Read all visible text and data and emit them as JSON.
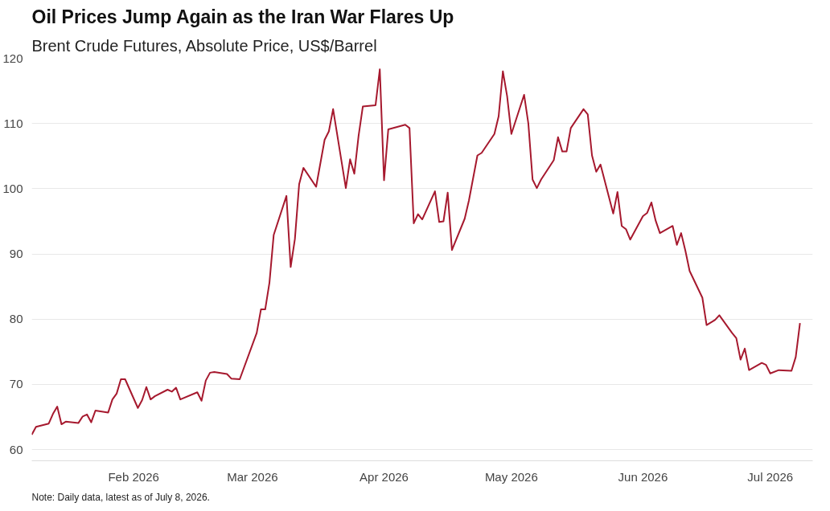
{
  "chart_data": {
    "type": "line",
    "title": "Oil Prices Jump Again as the Iran War Flares Up",
    "subtitle": "Brent Crude Futures, Absolute Price, US$/Barrel",
    "x": [
      "2026-01-08",
      "2026-01-09",
      "2026-01-12",
      "2026-01-13",
      "2026-01-14",
      "2026-01-15",
      "2026-01-16",
      "2026-01-19",
      "2026-01-20",
      "2026-01-21",
      "2026-01-22",
      "2026-01-23",
      "2026-01-26",
      "2026-01-27",
      "2026-01-28",
      "2026-01-29",
      "2026-01-30",
      "2026-02-02",
      "2026-02-03",
      "2026-02-04",
      "2026-02-05",
      "2026-02-06",
      "2026-02-09",
      "2026-02-10",
      "2026-02-11",
      "2026-02-12",
      "2026-02-16",
      "2026-02-17",
      "2026-02-18",
      "2026-02-19",
      "2026-02-20",
      "2026-02-23",
      "2026-02-24",
      "2026-02-26",
      "2026-03-02",
      "2026-03-03",
      "2026-03-04",
      "2026-03-05",
      "2026-03-06",
      "2026-03-09",
      "2026-03-10",
      "2026-03-11",
      "2026-03-12",
      "2026-03-13",
      "2026-03-16",
      "2026-03-18",
      "2026-03-19",
      "2026-03-20",
      "2026-03-23",
      "2026-03-24",
      "2026-03-25",
      "2026-03-26",
      "2026-03-27",
      "2026-03-30",
      "2026-03-31",
      "2026-04-01",
      "2026-04-02",
      "2026-04-06",
      "2026-04-07",
      "2026-04-08",
      "2026-04-09",
      "2026-04-10",
      "2026-04-13",
      "2026-04-14",
      "2026-04-15",
      "2026-04-16",
      "2026-04-17",
      "2026-04-20",
      "2026-04-21",
      "2026-04-23",
      "2026-04-24",
      "2026-04-27",
      "2026-04-28",
      "2026-04-29",
      "2026-04-30",
      "2026-05-01",
      "2026-05-04",
      "2026-05-05",
      "2026-05-06",
      "2026-05-07",
      "2026-05-08",
      "2026-05-11",
      "2026-05-12",
      "2026-05-13",
      "2026-05-14",
      "2026-05-15",
      "2026-05-18",
      "2026-05-19",
      "2026-05-20",
      "2026-05-21",
      "2026-05-22",
      "2026-05-25",
      "2026-05-26",
      "2026-05-27",
      "2026-05-28",
      "2026-05-29",
      "2026-06-01",
      "2026-06-02",
      "2026-06-03",
      "2026-06-04",
      "2026-06-05",
      "2026-06-08",
      "2026-06-09",
      "2026-06-10",
      "2026-06-11",
      "2026-06-12",
      "2026-06-15",
      "2026-06-16",
      "2026-06-17",
      "2026-06-18",
      "2026-06-19",
      "2026-06-22",
      "2026-06-23",
      "2026-06-24",
      "2026-06-25",
      "2026-06-26",
      "2026-06-29",
      "2026-06-30",
      "2026-07-01",
      "2026-07-03",
      "2026-07-06",
      "2026-07-07",
      "2026-07-08"
    ],
    "series": [
      {
        "color": "#a6192e",
        "values": [
          62.3,
          63.5,
          64.0,
          65.5,
          66.6,
          63.9,
          64.3,
          64.1,
          65.1,
          65.4,
          64.2,
          66.0,
          65.7,
          67.7,
          68.6,
          70.8,
          70.8,
          66.4,
          67.6,
          69.6,
          67.7,
          68.2,
          69.2,
          68.9,
          69.5,
          67.7,
          68.8,
          67.5,
          70.6,
          71.8,
          71.9,
          71.6,
          70.9,
          70.8,
          77.9,
          81.5,
          81.5,
          85.6,
          92.9,
          98.9,
          88.0,
          92.3,
          100.7,
          103.2,
          100.3,
          107.5,
          108.8,
          112.2,
          100.1,
          104.5,
          102.3,
          108.1,
          112.6,
          112.8,
          118.3,
          101.3,
          109.1,
          109.8,
          109.3,
          94.7,
          96.1,
          95.3,
          99.6,
          94.9,
          95.0,
          99.4,
          90.6,
          95.4,
          98.2,
          105.1,
          105.5,
          108.4,
          111.1,
          118.0,
          114.2,
          108.4,
          114.4,
          110.0,
          101.4,
          100.1,
          101.4,
          104.4,
          107.9,
          105.7,
          105.7,
          109.3,
          112.2,
          111.4,
          105.1,
          102.6,
          103.7,
          96.2,
          99.5,
          94.3,
          93.8,
          92.2,
          95.8,
          96.3,
          97.9,
          95.1,
          93.2,
          94.3,
          91.4,
          93.2,
          90.5,
          87.4,
          83.3,
          79.1,
          79.5,
          79.9,
          80.6,
          77.9,
          77.1,
          73.8,
          75.5,
          72.2,
          73.3,
          73.0,
          71.7,
          72.2,
          72.1,
          74.2,
          79.4
        ]
      }
    ],
    "xlim": [
      "2026-01-08",
      "2026-07-11"
    ],
    "xticks": [
      {
        "value": "2026-02-01",
        "label": "Feb 2026"
      },
      {
        "value": "2026-03-01",
        "label": "Mar 2026"
      },
      {
        "value": "2026-04-01",
        "label": "Apr 2026"
      },
      {
        "value": "2026-05-01",
        "label": "May 2026"
      },
      {
        "value": "2026-06-01",
        "label": "Jun 2026"
      },
      {
        "value": "2026-07-01",
        "label": "Jul 2026"
      }
    ],
    "ylim": [
      58.3,
      120
    ],
    "yticks": [
      60,
      70,
      80,
      90,
      100,
      110,
      120
    ],
    "grid": "y",
    "annotations": [
      "Note: Daily data, latest as of July 8, 2026."
    ]
  }
}
